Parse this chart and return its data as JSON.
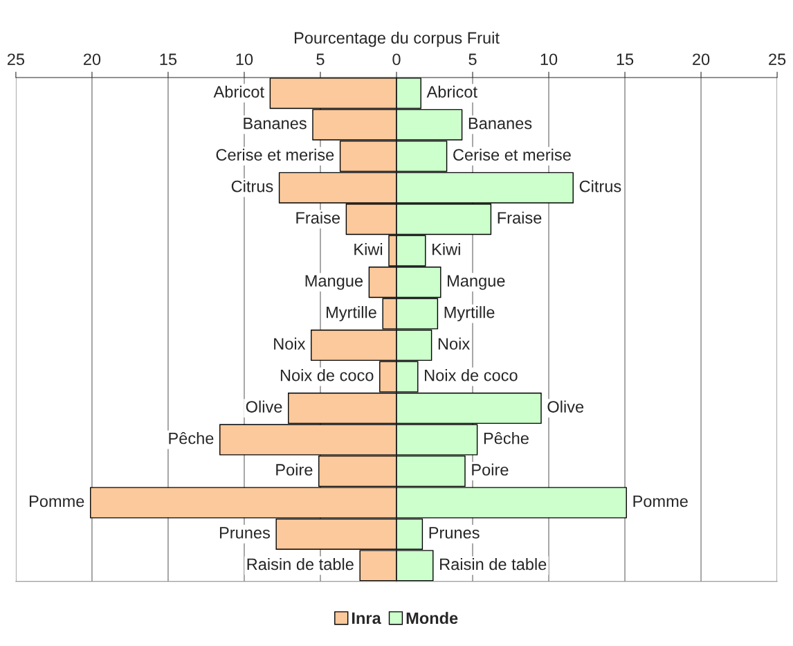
{
  "chart_data": {
    "type": "bar",
    "orientation": "horizontal",
    "xlabel": "Pourcentage du corpus Fruit",
    "categories": [
      "Abricot",
      "Bananes",
      "Cerise et merise",
      "Citrus",
      "Fraise",
      "Kiwi",
      "Mangue",
      "Myrtille",
      "Noix",
      "Noix de coco",
      "Olive",
      "Pêche",
      "Poire",
      "Pomme",
      "Prunes",
      "Raisin de table"
    ],
    "series": [
      {
        "name": "Inra",
        "color": "#fbc99b",
        "values": [
          -8.3,
          -5.5,
          -3.7,
          -7.7,
          -3.3,
          -0.5,
          -1.8,
          -0.9,
          -5.6,
          -1.1,
          -7.1,
          -11.6,
          -5.1,
          -20.1,
          -7.9,
          -2.4
        ]
      },
      {
        "name": "Monde",
        "color": "#ccffcc",
        "values": [
          1.6,
          4.3,
          3.3,
          11.6,
          6.2,
          1.9,
          2.9,
          2.7,
          2.3,
          1.4,
          9.5,
          5.3,
          4.5,
          15.1,
          1.7,
          2.4
        ]
      }
    ],
    "xlim": [
      -25,
      25
    ],
    "xticks": [
      {
        "value": -25,
        "label": "25"
      },
      {
        "value": -20,
        "label": "20"
      },
      {
        "value": -15,
        "label": "15"
      },
      {
        "value": -10,
        "label": "10"
      },
      {
        "value": -5,
        "label": "5"
      },
      0,
      5,
      10,
      15,
      20,
      25
    ],
    "grid": "x",
    "legend": "bottom",
    "stacked": true
  }
}
